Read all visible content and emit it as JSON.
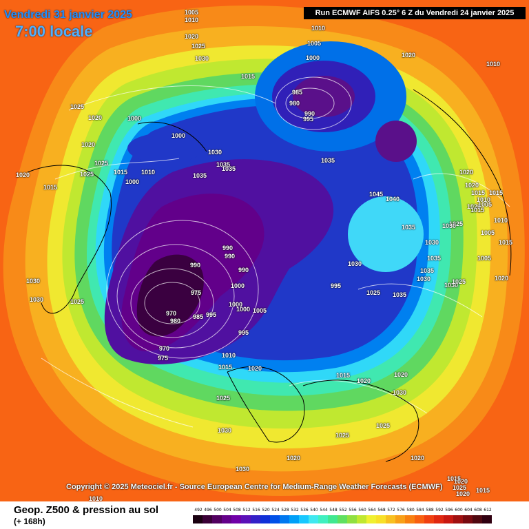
{
  "header": {
    "date_title": "Vendredi 31 janvier 2025",
    "time_title": "7:00 locale",
    "run_info": "Run ECMWF AIFS 0.25° 6 Z du Vendredi 24 janvier 2025"
  },
  "footer": {
    "copyright": "Copyright © 2025 Meteociel.fr - Source European Centre for Medium-Range Weather Forecasts (ECMWF)",
    "product": "Geop. Z500 & pression au sol",
    "lead": "(+ 168h)"
  },
  "scale": {
    "values": [
      "492",
      "496",
      "500",
      "504",
      "508",
      "512",
      "516",
      "520",
      "524",
      "528",
      "532",
      "536",
      "540",
      "544",
      "548",
      "552",
      "556",
      "560",
      "564",
      "568",
      "572",
      "576",
      "580",
      "584",
      "588",
      "592",
      "596",
      "600",
      "604",
      "608",
      "612"
    ],
    "colors": [
      "#1a0010",
      "#3a0036",
      "#520060",
      "#64008a",
      "#7000a8",
      "#5a10b8",
      "#3420c8",
      "#1030d8",
      "#0050e8",
      "#0078f0",
      "#00a0f8",
      "#18c8ff",
      "#40e8f0",
      "#40f0c0",
      "#40e890",
      "#60e060",
      "#90e040",
      "#c0e830",
      "#f0f030",
      "#f8e028",
      "#f8c020",
      "#f8a018",
      "#f88010",
      "#f86010",
      "#f04010",
      "#e02810",
      "#c81810",
      "#a01010",
      "#780a10",
      "#500810",
      "#300010"
    ]
  },
  "map_labels": {
    "pressure": [
      "1005",
      "1010",
      "1020",
      "1025",
      "1030",
      "1010",
      "1005",
      "1000",
      "1020",
      "1010",
      "1015",
      "1025",
      "1020",
      "1000",
      "985",
      "980",
      "990",
      "995",
      "1020",
      "1000",
      "1030",
      "1035",
      "1035",
      "1035",
      "1035",
      "1045",
      "1040",
      "1020",
      "1020",
      "1015",
      "1010",
      "1020",
      "1005",
      "1015",
      "1015",
      "1010",
      "1025",
      "1030",
      "1035",
      "1030",
      "1005",
      "1005",
      "1015",
      "1035",
      "1035",
      "1030",
      "1030",
      "1025",
      "1020",
      "990",
      "990",
      "990",
      "990",
      "1000",
      "1000",
      "975",
      "970",
      "980",
      "985",
      "995",
      "1000",
      "1005",
      "995",
      "995",
      "1025",
      "1035",
      "1030",
      "1030",
      "1025",
      "970",
      "975",
      "1010",
      "1015",
      "1020",
      "1015",
      "1020",
      "1020",
      "1030",
      "1025",
      "1030",
      "1025",
      "1025",
      "1020",
      "1030",
      "1015",
      "1025",
      "1020",
      "1010",
      "1015",
      "1000",
      "1015",
      "1010",
      "1025",
      "1015",
      "1020",
      "1025",
      "1020",
      "1020",
      "1030"
    ]
  }
}
